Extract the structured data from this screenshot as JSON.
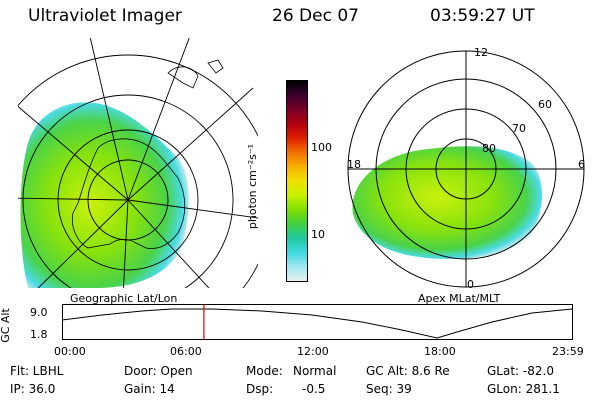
{
  "header": {
    "instrument": "Ultraviolet Imager",
    "date": "26 Dec 07",
    "time": "03:59:27 UT"
  },
  "left_map": {
    "caption": "Geographic Lat/Lon"
  },
  "right_map": {
    "caption": "Apex MLat/MLT",
    "mlt_labels": {
      "top": "12",
      "right": "6",
      "bottom": "0",
      "left": "18"
    },
    "mlat_labels": [
      "60",
      "70",
      "80"
    ]
  },
  "colorbar": {
    "unit_label": "photon cm⁻²s⁻¹",
    "ticks": [
      "100",
      "10"
    ],
    "colors": [
      "#000000",
      "#3a0030",
      "#7a0028",
      "#b00010",
      "#e02000",
      "#f07000",
      "#f8b000",
      "#f0e000",
      "#c8f000",
      "#80e000",
      "#40d040",
      "#20c8a0",
      "#40d8e0",
      "#a0e8f0",
      "#e8f0f0"
    ]
  },
  "timeline": {
    "axis_label": "GC Alt",
    "y_ticks": [
      "9.0",
      "1.8"
    ],
    "x_ticks": [
      "00:00",
      "06:00",
      "12:00",
      "18:00",
      "23:59"
    ],
    "current_time_fraction": 0.2777,
    "marker_color": "#e00000"
  },
  "info": {
    "row1": {
      "filter": "Flt: LBHL",
      "door": "Door: Open",
      "mode_label": "Mode:",
      "mode_value": "Normal",
      "gc_alt": "GC Alt: 8.6 Re",
      "glat": "GLat: -82.0"
    },
    "row2": {
      "ip": "IP: 36.0",
      "gain": "Gain: 14",
      "dsp_label": "Dsp:",
      "dsp_value": "-0.5",
      "seq": "Seq: 39",
      "glon": "GLon: 281.1"
    }
  }
}
